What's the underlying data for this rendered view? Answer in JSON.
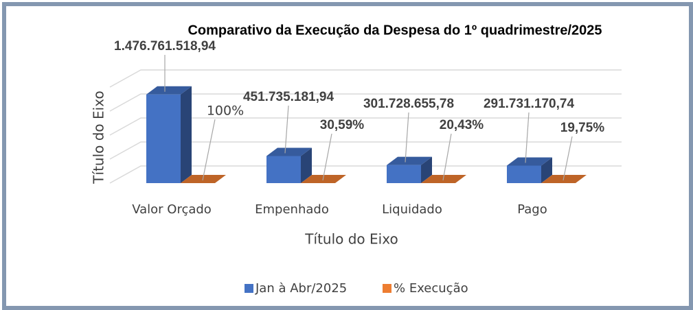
{
  "chart_data": {
    "type": "bar3d",
    "title": "Comparativo da Execução da Despesa  do 1º quadrimestre/2025",
    "y_axis_label": "Título do Eixo",
    "x_axis_label": "Título do Eixo",
    "categories": [
      "Valor Orçado",
      "Empenhado",
      "Liquidado",
      "Pago"
    ],
    "series": [
      {
        "name": "Jan à Abr/2025",
        "color": "#4472c4",
        "values": [
          1476761518.94,
          451735181.94,
          301728655.78,
          291731170.74
        ],
        "value_labels": [
          "1.476.761.518,94",
          "451.735.181,94",
          "301.728.655,78",
          "291.731.170,74"
        ]
      },
      {
        "name": "% Execução",
        "color": "#ed7d31",
        "values": [
          100,
          30.59,
          20.43,
          19.75
        ],
        "value_labels": [
          "100%",
          "30,59%",
          "20,43%",
          "19,75%"
        ]
      }
    ],
    "ylim": [
      0,
      1600000000
    ],
    "yticks": [
      0,
      400000000,
      800000000,
      1200000000,
      1600000000
    ],
    "grid": true,
    "legend": "bottom"
  }
}
